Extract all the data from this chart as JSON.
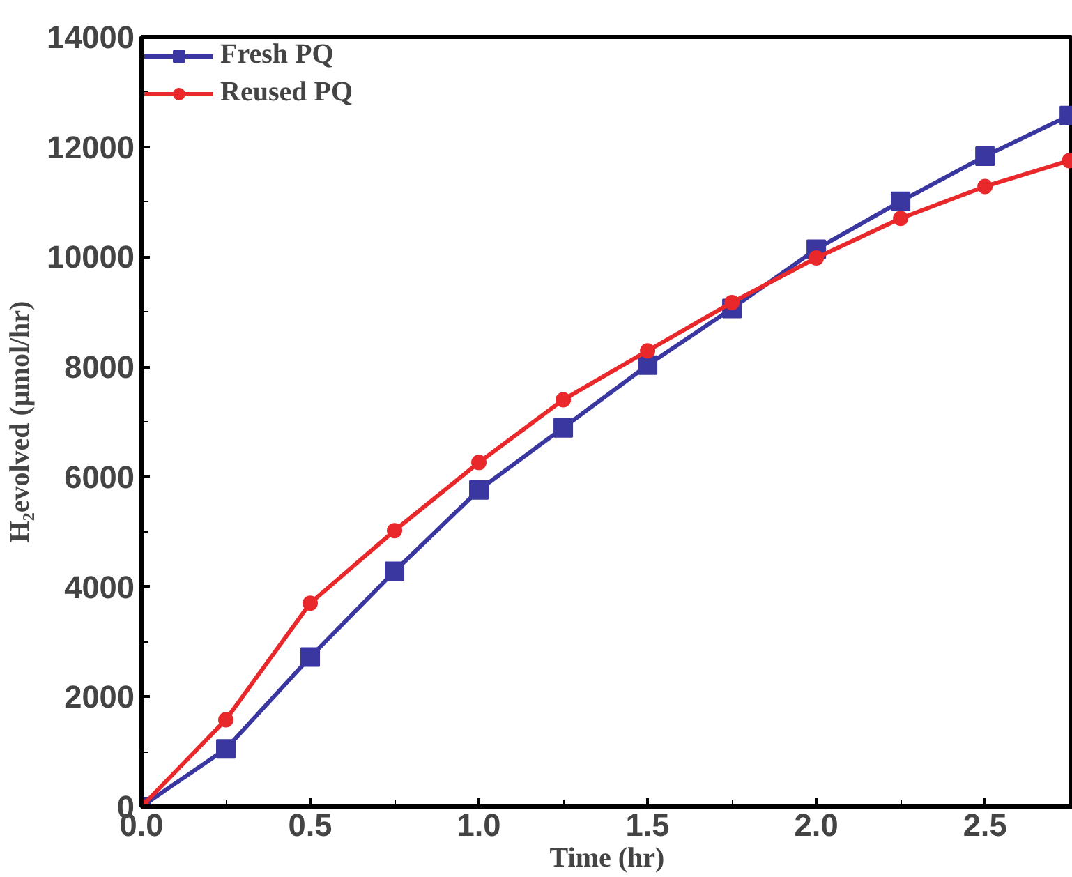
{
  "chart_data": {
    "type": "line",
    "xlabel": "Time (hr)",
    "ylabel": "H₂evolved (μmol/hr)",
    "x": [
      0,
      0.25,
      0.5,
      0.75,
      1.0,
      1.25,
      1.5,
      1.75,
      2.0,
      2.25,
      2.5,
      2.75
    ],
    "series": [
      {
        "name": "Fresh PQ",
        "color": "#3a37a0",
        "marker": "square",
        "values": [
          0,
          1050,
          2720,
          4280,
          5760,
          6890,
          8030,
          9060,
          10140,
          11010,
          11830,
          12570
        ]
      },
      {
        "name": "Reused PQ",
        "color": "#e8282a",
        "marker": "circle",
        "values": [
          0,
          1580,
          3700,
          5020,
          6260,
          7400,
          8290,
          9170,
          9980,
          10700,
          11280,
          11750
        ]
      }
    ],
    "xlim": [
      0,
      2.76
    ],
    "xticks": [
      {
        "value": 0,
        "label": "0.0"
      },
      {
        "value": 0.5,
        "label": "0.5"
      },
      {
        "value": 1.0,
        "label": "1.0"
      },
      {
        "value": 1.5,
        "label": "1.5"
      },
      {
        "value": 2.0,
        "label": "2.0"
      },
      {
        "value": 2.5,
        "label": "2.5"
      }
    ],
    "ylim": [
      0,
      14000
    ],
    "yticks": [
      0,
      2000,
      4000,
      6000,
      8000,
      10000,
      12000,
      14000
    ],
    "grid": false,
    "legend": "top left",
    "line_style": "solid"
  }
}
